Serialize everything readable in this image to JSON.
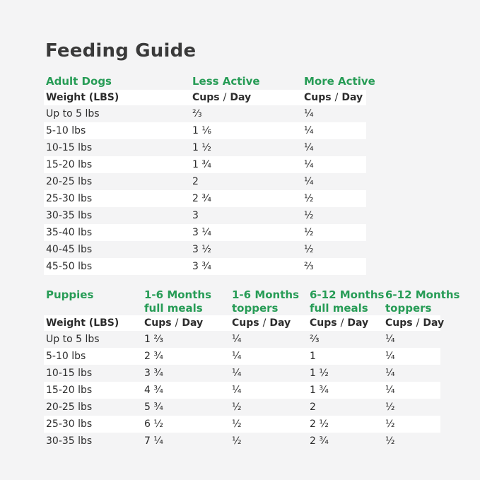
{
  "title": "Feeding Guide",
  "colors": {
    "background": "#f4f4f5",
    "row_stripe": "#ffffff",
    "accent_green": "#279c56",
    "text_dark": "#2d2d2d"
  },
  "labels": {
    "weight": "Weight (LBS)",
    "cups": "Cups",
    "slash": "/",
    "day": "Day"
  },
  "adult": {
    "section": "Adult Dogs",
    "activity_headers": [
      "Less Active",
      "More Active"
    ],
    "rows": [
      [
        "Up to 5 lbs",
        "⅔",
        "¼"
      ],
      [
        "5-10 lbs",
        "1 ⅙",
        "¼"
      ],
      [
        "10-15 lbs",
        "1 ½",
        "¼"
      ],
      [
        "15-20 lbs",
        "1 ¾",
        "¼"
      ],
      [
        "20-25 lbs",
        "2",
        "¼"
      ],
      [
        "25-30 lbs",
        "2 ¾",
        "½"
      ],
      [
        "30-35 lbs",
        "3",
        "½"
      ],
      [
        "35-40 lbs",
        "3 ¼",
        "½"
      ],
      [
        "40-45 lbs",
        "3 ½",
        "½"
      ],
      [
        "45-50 lbs",
        "3 ¾",
        "⅔"
      ]
    ]
  },
  "puppies": {
    "section": "Puppies",
    "group_headers": [
      {
        "l1": "1-6 Months",
        "l2": "full meals"
      },
      {
        "l1": "1-6 Months",
        "l2": "toppers"
      },
      {
        "l1": "6-12 Months",
        "l2": "full meals"
      },
      {
        "l1": "6-12 Months",
        "l2": "toppers"
      }
    ],
    "rows": [
      [
        "Up to 5 lbs",
        "1 ⅔",
        "¼",
        "⅔",
        "¼"
      ],
      [
        "5-10 lbs",
        "2 ¾",
        "¼",
        "1",
        "¼"
      ],
      [
        "10-15 lbs",
        "3 ¾",
        "¼",
        "1 ½",
        "¼"
      ],
      [
        "15-20 lbs",
        "4 ¾",
        "¼",
        "1 ¾",
        "¼"
      ],
      [
        "20-25 lbs",
        "5 ¾",
        "½",
        "2",
        "½"
      ],
      [
        "25-30 lbs",
        "6 ½",
        "½",
        "2 ½",
        "½"
      ],
      [
        "30-35 lbs",
        "7 ¼",
        "½",
        "2 ¾",
        "½"
      ]
    ]
  }
}
